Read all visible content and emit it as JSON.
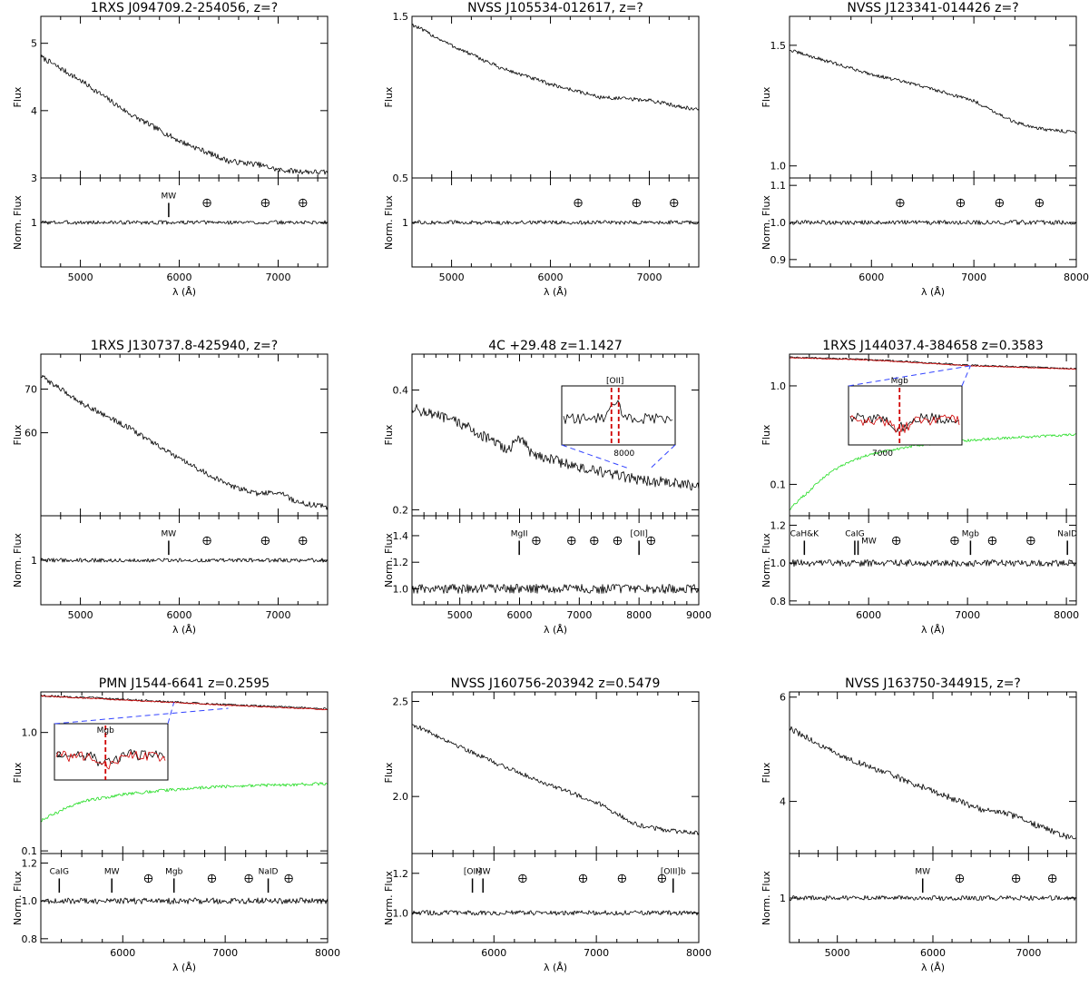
{
  "chart_data": [
    {
      "type": "line",
      "title": "1RXS J094709.2-254056, z=?",
      "xlabel": "λ (Å)",
      "ylabel_top": "Flux",
      "ylabel_bottom": "Norm. Flux",
      "xlim": [
        4600,
        7500
      ],
      "xticks": [
        5000,
        6000,
        7000
      ],
      "top": {
        "ylim": [
          3.0,
          5.4
        ],
        "yticks": [
          3,
          4,
          5
        ],
        "series": [
          {
            "name": "spectrum",
            "color": "#000000",
            "noise": 0.04,
            "x": [
              4600,
              5000,
              5500,
              6000,
              6500,
              6800,
              7000,
              7200,
              7500
            ],
            "y": [
              4.8,
              4.45,
              3.95,
              3.55,
              3.25,
              3.2,
              3.12,
              3.1,
              3.08
            ]
          }
        ]
      },
      "bottom": {
        "ylim": [
          0.55,
          1.45
        ],
        "yticks": [
          1
        ],
        "series": [
          {
            "name": "normalized",
            "color": "#000000",
            "noise": 0.02,
            "x": [
              4600,
              7500
            ],
            "y": [
              1.0,
              1.0
            ]
          }
        ],
        "markers": [
          {
            "x": 5893,
            "label": "MW",
            "kind": "tick"
          },
          {
            "x": 6280,
            "kind": "earth"
          },
          {
            "x": 6870,
            "kind": "earth"
          },
          {
            "x": 7250,
            "kind": "earth"
          }
        ]
      }
    },
    {
      "type": "line",
      "title": "NVSS J105534-012617, z=?",
      "xlabel": "λ (Å)",
      "ylabel_top": "Flux",
      "ylabel_bottom": "Norm. Flux",
      "xlim": [
        4600,
        7500
      ],
      "xticks": [
        5000,
        6000,
        7000
      ],
      "top": {
        "ylim": [
          0.5,
          1.5
        ],
        "yticks": [
          0.5,
          1.5
        ],
        "series": [
          {
            "name": "spectrum",
            "color": "#000000",
            "noise": 0.012,
            "x": [
              4600,
              5000,
              5500,
              6000,
              6500,
              7000,
              7500
            ],
            "y": [
              1.45,
              1.32,
              1.18,
              1.08,
              1.0,
              0.98,
              0.92
            ]
          }
        ]
      },
      "bottom": {
        "ylim": [
          0.55,
          1.45
        ],
        "yticks": [
          1
        ],
        "series": [
          {
            "name": "normalized",
            "color": "#000000",
            "noise": 0.02,
            "x": [
              4600,
              7500
            ],
            "y": [
              1.0,
              1.0
            ]
          }
        ],
        "markers": [
          {
            "x": 6280,
            "kind": "earth"
          },
          {
            "x": 6870,
            "kind": "earth"
          },
          {
            "x": 7250,
            "kind": "earth"
          }
        ]
      }
    },
    {
      "type": "line",
      "title": "NVSS J123341-014426 z=?",
      "xlabel": "λ (Å)",
      "ylabel_top": "Flux",
      "ylabel_bottom": "Norm. Flux",
      "xlim": [
        5200,
        8000
      ],
      "xticks": [
        6000,
        7000,
        8000
      ],
      "top": {
        "ylim": [
          0.95,
          1.62
        ],
        "yticks": [
          1.0,
          1.5
        ],
        "series": [
          {
            "name": "spectrum",
            "color": "#000000",
            "noise": 0.007,
            "x": [
              5200,
              5600,
              6000,
              6500,
              7000,
              7400,
              7700,
              8000
            ],
            "y": [
              1.48,
              1.43,
              1.38,
              1.33,
              1.27,
              1.18,
              1.15,
              1.14
            ]
          }
        ]
      },
      "bottom": {
        "ylim": [
          0.88,
          1.12
        ],
        "yticks": [
          0.9,
          1.0,
          1.1
        ],
        "series": [
          {
            "name": "normalized",
            "color": "#000000",
            "noise": 0.006,
            "x": [
              5200,
              8000
            ],
            "y": [
              1.0,
              1.0
            ]
          }
        ],
        "markers": [
          {
            "x": 6280,
            "kind": "earth"
          },
          {
            "x": 6870,
            "kind": "earth"
          },
          {
            "x": 7250,
            "kind": "earth"
          },
          {
            "x": 7640,
            "kind": "earth"
          }
        ]
      }
    },
    {
      "type": "line",
      "title": "1RXS J130737.8-425940, z=?",
      "xlabel": "λ (Å)",
      "ylabel_top": "Flux",
      "ylabel_bottom": "Norm. Flux",
      "xlim": [
        4600,
        7500
      ],
      "xticks": [
        5000,
        6000,
        7000
      ],
      "top": {
        "ylim": [
          41,
          78
        ],
        "yticks": [
          60,
          70
        ],
        "series": [
          {
            "name": "spectrum",
            "color": "#000000",
            "noise": 0.6,
            "x": [
              4600,
              5000,
              5500,
              6000,
              6500,
              6800,
              7000,
              7200,
              7500
            ],
            "y": [
              73,
              67,
              61,
              54,
              48,
              46,
              46.5,
              44,
              43
            ]
          }
        ]
      },
      "bottom": {
        "ylim": [
          0.55,
          1.45
        ],
        "yticks": [
          1
        ],
        "series": [
          {
            "name": "normalized",
            "color": "#000000",
            "noise": 0.02,
            "x": [
              4600,
              7500
            ],
            "y": [
              1.0,
              1.0
            ]
          }
        ],
        "markers": [
          {
            "x": 5893,
            "label": "MW",
            "kind": "tick"
          },
          {
            "x": 6280,
            "kind": "earth"
          },
          {
            "x": 6870,
            "kind": "earth"
          },
          {
            "x": 7250,
            "kind": "earth"
          }
        ]
      }
    },
    {
      "type": "line",
      "title": "4C +29.48 z=1.1427",
      "xlabel": "λ (Å)",
      "ylabel_top": "Flux",
      "ylabel_bottom": "Norm. Flux",
      "xlim": [
        4200,
        9000
      ],
      "xticks": [
        5000,
        6000,
        7000,
        8000,
        9000
      ],
      "top": {
        "ylim": [
          0.19,
          0.46
        ],
        "yticks": [
          0.2,
          0.4
        ],
        "series": [
          {
            "name": "spectrum",
            "color": "#000000",
            "noise": 0.009,
            "x": [
              4200,
              5000,
              5800,
              6000,
              6200,
              7000,
              8000,
              9000
            ],
            "y": [
              0.37,
              0.345,
              0.3,
              0.32,
              0.295,
              0.27,
              0.25,
              0.24
            ]
          }
        ],
        "inset": {
          "label": "[OII]",
          "x_tick_label": "8000"
        }
      },
      "bottom": {
        "ylim": [
          0.88,
          1.55
        ],
        "yticks": [
          1.0,
          1.2,
          1.4
        ],
        "series": [
          {
            "name": "normalized",
            "color": "#000000",
            "noise": 0.035,
            "x": [
              4200,
              9000
            ],
            "y": [
              1.0,
              1.0
            ]
          }
        ],
        "markers": [
          {
            "x": 5995,
            "label": "MgII",
            "kind": "tick"
          },
          {
            "x": 6280,
            "kind": "earth"
          },
          {
            "x": 6870,
            "kind": "earth"
          },
          {
            "x": 7250,
            "kind": "earth"
          },
          {
            "x": 7640,
            "kind": "earth"
          },
          {
            "x": 8000,
            "label": "[OII]",
            "kind": "tick"
          },
          {
            "x": 8200,
            "kind": "earth"
          }
        ]
      }
    },
    {
      "type": "line",
      "title": "1RXS J144037.4-384658 z=0.3583",
      "xlabel": "λ (Å)",
      "ylabel_top": "Flux",
      "ylabel_bottom": "Norm. Flux",
      "xlim": [
        5200,
        8100
      ],
      "xticks": [
        6000,
        7000,
        8000
      ],
      "top": {
        "ylim": [
          0.048,
          2.1
        ],
        "yscale": "log",
        "yticks": [
          0.1,
          1.0
        ],
        "series": [
          {
            "name": "observed",
            "color": "#000000",
            "noise": 0.02,
            "x": [
              5200,
              6000,
              7000,
              8100
            ],
            "y": [
              1.95,
              1.85,
              1.62,
              1.5
            ]
          },
          {
            "name": "model",
            "color": "#d00000",
            "noise": 0.01,
            "x": [
              5200,
              6000,
              7000,
              8100
            ],
            "y": [
              1.93,
              1.83,
              1.6,
              1.48
            ]
          },
          {
            "name": "host galaxy",
            "color": "#22dd22",
            "noise": 0.03,
            "x": [
              5200,
              5400,
              5700,
              6000,
              6500,
              7000,
              7500,
              8100
            ],
            "y": [
              0.055,
              0.085,
              0.15,
              0.2,
              0.25,
              0.28,
              0.3,
              0.32
            ]
          }
        ],
        "inset": {
          "label": "Mgb",
          "x_tick_label": "7000"
        }
      },
      "bottom": {
        "ylim": [
          0.78,
          1.25
        ],
        "yticks": [
          0.8,
          1.0,
          1.2
        ],
        "series": [
          {
            "name": "normalized",
            "color": "#000000",
            "noise": 0.018,
            "x": [
              5200,
              8100
            ],
            "y": [
              1.0,
              1.0
            ]
          }
        ],
        "markers": [
          {
            "x": 5350,
            "label": "CaH&K",
            "kind": "tick"
          },
          {
            "x": 5860,
            "label": "CaIG",
            "kind": "tick"
          },
          {
            "x": 5893,
            "label": "MW",
            "kind": "tick"
          },
          {
            "x": 6280,
            "kind": "earth"
          },
          {
            "x": 6870,
            "kind": "earth"
          },
          {
            "x": 7030,
            "label": "Mgb",
            "kind": "tick"
          },
          {
            "x": 7250,
            "kind": "earth"
          },
          {
            "x": 7640,
            "kind": "earth"
          },
          {
            "x": 8010,
            "label": "NaID",
            "kind": "tick"
          }
        ]
      }
    },
    {
      "type": "line",
      "title": "PMN J1544-6641 z=0.2595",
      "xlabel": "λ (Å)",
      "ylabel_top": "Flux",
      "ylabel_bottom": "Norm. Flux",
      "xlim": [
        5200,
        8000
      ],
      "xticks": [
        6000,
        7000,
        8000
      ],
      "top": {
        "ylim": [
          0.095,
          2.2
        ],
        "yscale": "log",
        "yticks": [
          0.1,
          1.0
        ],
        "series": [
          {
            "name": "observed",
            "color": "#000000",
            "noise": 0.02,
            "x": [
              5200,
              6000,
              7000,
              8000
            ],
            "y": [
              2.05,
              1.9,
              1.72,
              1.58
            ]
          },
          {
            "name": "model",
            "color": "#d00000",
            "noise": 0.01,
            "x": [
              5200,
              6000,
              7000,
              8000
            ],
            "y": [
              2.03,
              1.88,
              1.7,
              1.56
            ]
          },
          {
            "name": "host galaxy",
            "color": "#22dd22",
            "noise": 0.03,
            "x": [
              5200,
              5600,
              6000,
              6500,
              7000,
              7500,
              8000
            ],
            "y": [
              0.18,
              0.26,
              0.3,
              0.33,
              0.35,
              0.36,
              0.37
            ]
          }
        ],
        "inset": {
          "label": "Mgb",
          "y_tick_label": "2"
        }
      },
      "bottom": {
        "ylim": [
          0.78,
          1.25
        ],
        "yticks": [
          0.8,
          1.0,
          1.2
        ],
        "series": [
          {
            "name": "normalized",
            "color": "#000000",
            "noise": 0.016,
            "x": [
              5200,
              8000
            ],
            "y": [
              1.0,
              1.0
            ]
          }
        ],
        "markers": [
          {
            "x": 5380,
            "label": "CaIG",
            "kind": "tick"
          },
          {
            "x": 5893,
            "label": "MW",
            "kind": "tick"
          },
          {
            "x": 6250,
            "kind": "earth"
          },
          {
            "x": 6500,
            "label": "Mgb",
            "kind": "tick"
          },
          {
            "x": 6870,
            "kind": "earth"
          },
          {
            "x": 7230,
            "kind": "earth"
          },
          {
            "x": 7420,
            "label": "NaID",
            "kind": "tick"
          },
          {
            "x": 7620,
            "kind": "earth"
          }
        ]
      }
    },
    {
      "type": "line",
      "title": "NVSS J160756-203942   z=0.5479",
      "xlabel": "λ (Å)",
      "ylabel_top": "Flux",
      "ylabel_bottom": "Norm. Flux",
      "xlim": [
        5200,
        8000
      ],
      "xticks": [
        6000,
        7000,
        8000
      ],
      "top": {
        "ylim": [
          1.7,
          2.55
        ],
        "yticks": [
          2.0,
          2.5
        ],
        "series": [
          {
            "name": "spectrum",
            "color": "#000000",
            "noise": 0.012,
            "x": [
              5200,
              5600,
              6000,
              6500,
              7000,
              7400,
              7700,
              8000
            ],
            "y": [
              2.38,
              2.28,
              2.18,
              2.07,
              1.97,
              1.85,
              1.82,
              1.81
            ]
          }
        ]
      },
      "bottom": {
        "ylim": [
          0.85,
          1.3
        ],
        "yticks": [
          1.0,
          1.2
        ],
        "series": [
          {
            "name": "normalized",
            "color": "#000000",
            "noise": 0.012,
            "x": [
              5200,
              8000
            ],
            "y": [
              1.0,
              1.0
            ]
          }
        ],
        "markers": [
          {
            "x": 5790,
            "label": "[OII]",
            "kind": "tick"
          },
          {
            "x": 5893,
            "label": "MW",
            "kind": "tick"
          },
          {
            "x": 6280,
            "kind": "earth"
          },
          {
            "x": 6870,
            "kind": "earth"
          },
          {
            "x": 7250,
            "kind": "earth"
          },
          {
            "x": 7640,
            "kind": "earth"
          },
          {
            "x": 7750,
            "label": "[OIII]b",
            "kind": "tick"
          }
        ]
      }
    },
    {
      "type": "line",
      "title": "NVSS J163750-344915, z=?",
      "xlabel": "λ (Å)",
      "ylabel_top": "Flux",
      "ylabel_bottom": "Norm. Flux",
      "xlim": [
        4500,
        7500
      ],
      "xticks": [
        5000,
        6000,
        7000
      ],
      "top": {
        "ylim": [
          3.0,
          6.1
        ],
        "yticks": [
          4,
          6
        ],
        "series": [
          {
            "name": "spectrum",
            "color": "#000000",
            "noise": 0.06,
            "x": [
              4500,
              5000,
              5500,
              6000,
              6500,
              6800,
              7000,
              7500
            ],
            "y": [
              5.4,
              4.9,
              4.55,
              4.2,
              3.85,
              3.75,
              3.6,
              3.25
            ]
          }
        ]
      },
      "bottom": {
        "ylim": [
          0.55,
          1.45
        ],
        "yticks": [
          1
        ],
        "series": [
          {
            "name": "normalized",
            "color": "#000000",
            "noise": 0.025,
            "x": [
              4500,
              7500
            ],
            "y": [
              1.0,
              1.0
            ]
          }
        ],
        "markers": [
          {
            "x": 5893,
            "label": "MW",
            "kind": "tick"
          },
          {
            "x": 6280,
            "kind": "earth"
          },
          {
            "x": 6870,
            "kind": "earth"
          },
          {
            "x": 7250,
            "kind": "earth"
          }
        ]
      }
    }
  ]
}
